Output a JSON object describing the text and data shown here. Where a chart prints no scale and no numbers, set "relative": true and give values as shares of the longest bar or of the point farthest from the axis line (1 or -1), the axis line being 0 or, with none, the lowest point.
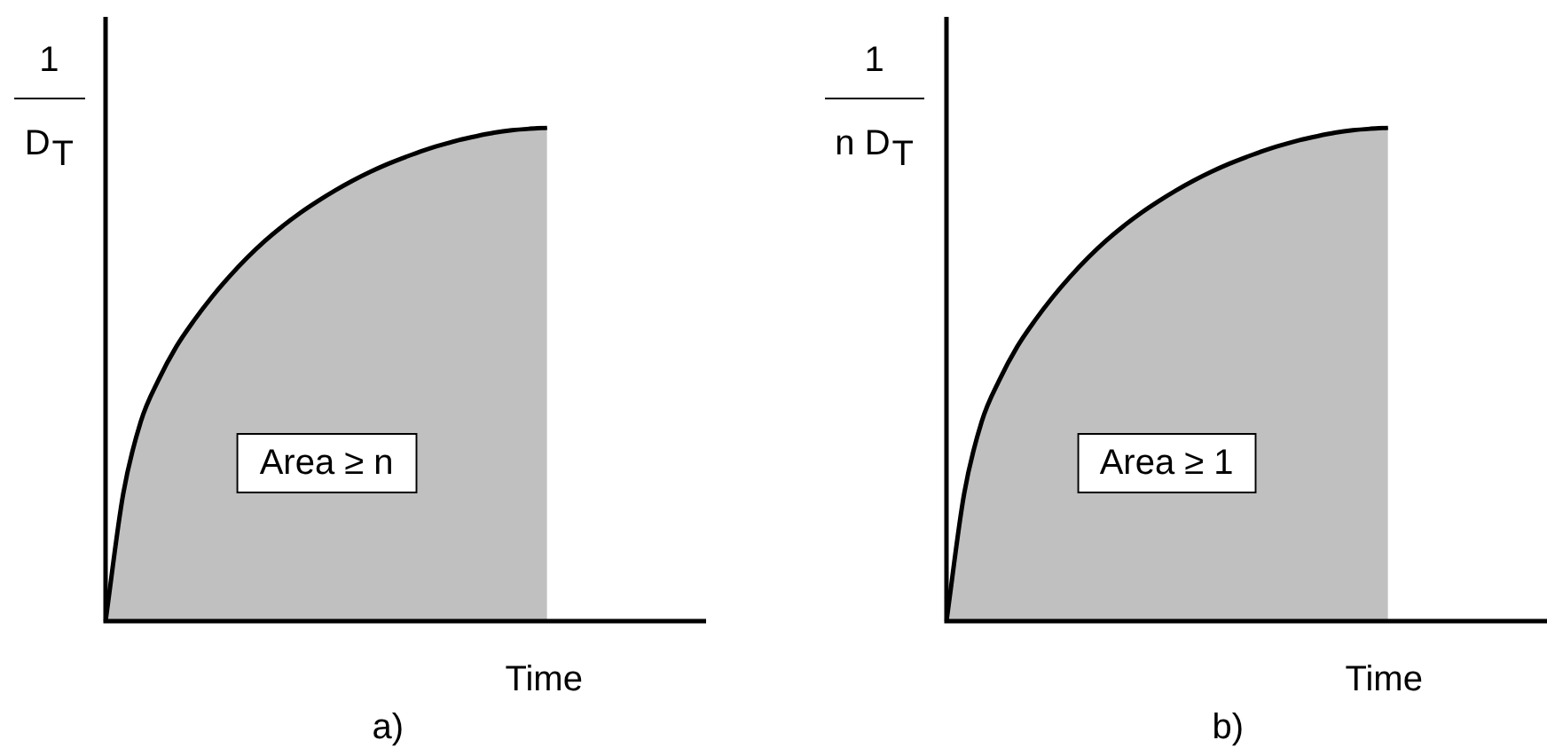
{
  "chart_data": [
    {
      "type": "area",
      "title": "a)",
      "xlabel": "Time",
      "ylabel": "1\nD$_{T}$",
      "relative": true,
      "categories": [
        null,
        null,
        null,
        null,
        null,
        null,
        null,
        null,
        null,
        null,
        null,
        null,
        null,
        null,
        null,
        null,
        null,
        null,
        null,
        null,
        null,
        null,
        null,
        null,
        null,
        null,
        null,
        null,
        null,
        null,
        null,
        null,
        null,
        null,
        null
      ],
      "values": [
        0,
        0.258,
        0.405,
        0.489,
        0.556,
        0.609,
        0.656,
        0.698,
        0.736,
        0.77,
        0.8,
        0.827,
        0.851,
        0.873,
        0.893,
        0.911,
        0.927,
        0.941,
        0.954,
        0.965,
        0.975,
        0.983,
        0.99,
        0.995,
        0.998,
        1,
        null,
        null,
        null,
        null,
        null,
        null,
        null,
        null,
        null
      ],
      "color": "#c0c0c0",
      "annotations": [
        "Area ≥ n"
      ]
    },
    {
      "type": "area",
      "title": "b)",
      "xlabel": "Time",
      "ylabel": "1\nn D$_{T}$",
      "relative": true,
      "categories": [
        null,
        null,
        null,
        null,
        null,
        null,
        null,
        null,
        null,
        null,
        null,
        null,
        null,
        null,
        null,
        null,
        null,
        null,
        null,
        null,
        null,
        null,
        null,
        null,
        null,
        null,
        null,
        null,
        null,
        null,
        null,
        null,
        null,
        null,
        null
      ],
      "values": [
        0,
        0.258,
        0.405,
        0.489,
        0.556,
        0.609,
        0.656,
        0.698,
        0.736,
        0.77,
        0.8,
        0.827,
        0.851,
        0.873,
        0.893,
        0.911,
        0.927,
        0.941,
        0.954,
        0.965,
        0.975,
        0.983,
        0.99,
        0.995,
        0.998,
        1,
        null,
        null,
        null,
        null,
        null,
        null,
        null,
        null,
        null
      ],
      "color": "#c0c0c0",
      "annotations": [
        "Area ≥ 1"
      ]
    }
  ]
}
